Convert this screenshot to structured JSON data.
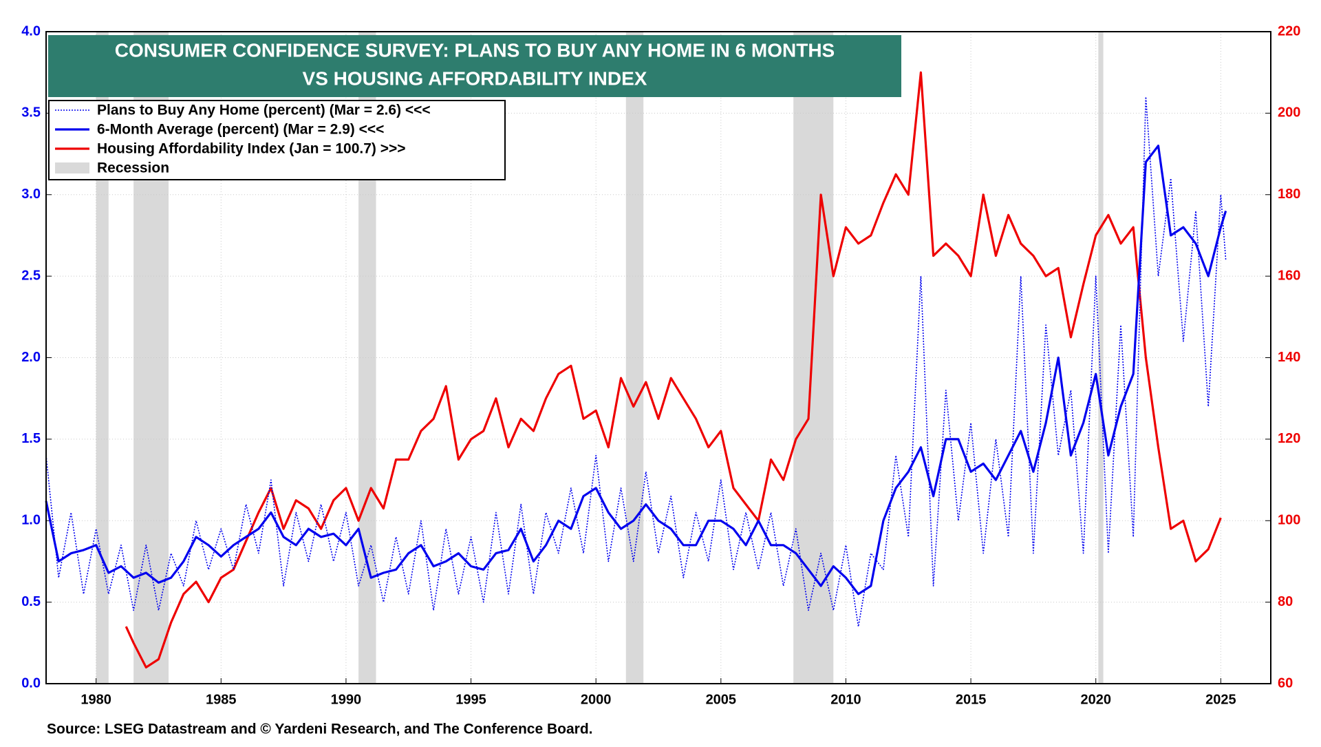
{
  "chart_data": {
    "type": "line",
    "title": [
      "CONSUMER CONFIDENCE SURVEY: PLANS TO BUY ANY HOME IN 6 MONTHS",
      "VS HOUSING AFFORDABILITY INDEX"
    ],
    "source": "Source: LSEG Datastream and © Yardeni Research, and The Conference Board.",
    "xlim": [
      1978,
      2027
    ],
    "xticks": [
      1980,
      1985,
      1990,
      1995,
      2000,
      2005,
      2010,
      2015,
      2020,
      2025
    ],
    "ylim": [
      0,
      4
    ],
    "yticks": [
      {
        "value": 0,
        "label": "0.0"
      },
      0.5,
      {
        "value": 1,
        "label": "1.0"
      },
      1.5,
      {
        "value": 2,
        "label": "2.0"
      },
      2.5,
      {
        "value": 3,
        "label": "3.0"
      },
      3.5,
      {
        "value": 4,
        "label": "4.0"
      }
    ],
    "y2lim": [
      60,
      220
    ],
    "y2ticks": [
      60,
      80,
      100,
      120,
      140,
      160,
      180,
      200,
      220
    ],
    "grid": true,
    "legend": "upper left",
    "series": [
      {
        "name": "Plans to Buy Any Home (percent) (Mar = 2.6) <<<",
        "color": "#0000ee",
        "style": "dotted",
        "x": [
          1978.0,
          1978.5,
          1979.0,
          1979.5,
          1980.0,
          1980.5,
          1981.0,
          1981.5,
          1982.0,
          1982.5,
          1983.0,
          1983.5,
          1984.0,
          1984.5,
          1985.0,
          1985.5,
          1986.0,
          1986.5,
          1987.0,
          1987.5,
          1988.0,
          1988.5,
          1989.0,
          1989.5,
          1990.0,
          1990.5,
          1991.0,
          1991.5,
          1992.0,
          1992.5,
          1993.0,
          1993.5,
          1994.0,
          1994.5,
          1995.0,
          1995.5,
          1996.0,
          1996.5,
          1997.0,
          1997.5,
          1998.0,
          1998.5,
          1999.0,
          1999.5,
          2000.0,
          2000.5,
          2001.0,
          2001.5,
          2002.0,
          2002.5,
          2003.0,
          2003.5,
          2004.0,
          2004.5,
          2005.0,
          2005.5,
          2006.0,
          2006.5,
          2007.0,
          2007.5,
          2008.0,
          2008.5,
          2009.0,
          2009.5,
          2010.0,
          2010.5,
          2011.0,
          2011.5,
          2012.0,
          2012.5,
          2013.0,
          2013.5,
          2014.0,
          2014.5,
          2015.0,
          2015.5,
          2016.0,
          2016.5,
          2017.0,
          2017.5,
          2018.0,
          2018.5,
          2019.0,
          2019.5,
          2020.0,
          2020.5,
          2021.0,
          2021.5,
          2022.0,
          2022.5,
          2023.0,
          2023.5,
          2024.0,
          2024.5,
          2025.0,
          2025.2
        ],
        "values": [
          1.4,
          0.65,
          1.05,
          0.55,
          0.95,
          0.55,
          0.85,
          0.45,
          0.85,
          0.45,
          0.8,
          0.6,
          1.0,
          0.7,
          0.95,
          0.7,
          1.1,
          0.8,
          1.25,
          0.6,
          1.05,
          0.75,
          1.1,
          0.75,
          1.05,
          0.6,
          0.85,
          0.5,
          0.9,
          0.55,
          1.0,
          0.45,
          0.95,
          0.55,
          0.9,
          0.5,
          1.05,
          0.55,
          1.1,
          0.55,
          1.05,
          0.8,
          1.2,
          0.8,
          1.4,
          0.75,
          1.2,
          0.75,
          1.3,
          0.8,
          1.15,
          0.65,
          1.05,
          0.75,
          1.25,
          0.7,
          1.05,
          0.7,
          1.05,
          0.6,
          0.95,
          0.45,
          0.8,
          0.45,
          0.85,
          0.35,
          0.8,
          0.7,
          1.4,
          0.9,
          2.5,
          0.6,
          1.8,
          1.0,
          1.6,
          0.8,
          1.5,
          0.9,
          2.5,
          0.8,
          2.2,
          1.4,
          1.8,
          0.8,
          2.5,
          0.8,
          2.2,
          0.9,
          3.6,
          2.5,
          3.1,
          2.1,
          2.9,
          1.7,
          3.0,
          2.6
        ]
      },
      {
        "name": "6-Month Average (percent) (Mar = 2.9) <<<",
        "color": "#0000ee",
        "style": "solid",
        "x": [
          1978.0,
          1978.5,
          1979.0,
          1979.5,
          1980.0,
          1980.5,
          1981.0,
          1981.5,
          1982.0,
          1982.5,
          1983.0,
          1983.5,
          1984.0,
          1984.5,
          1985.0,
          1985.5,
          1986.0,
          1986.5,
          1987.0,
          1987.5,
          1988.0,
          1988.5,
          1989.0,
          1989.5,
          1990.0,
          1990.5,
          1991.0,
          1991.5,
          1992.0,
          1992.5,
          1993.0,
          1993.5,
          1994.0,
          1994.5,
          1995.0,
          1995.5,
          1996.0,
          1996.5,
          1997.0,
          1997.5,
          1998.0,
          1998.5,
          1999.0,
          1999.5,
          2000.0,
          2000.5,
          2001.0,
          2001.5,
          2002.0,
          2002.5,
          2003.0,
          2003.5,
          2004.0,
          2004.5,
          2005.0,
          2005.5,
          2006.0,
          2006.5,
          2007.0,
          2007.5,
          2008.0,
          2008.5,
          2009.0,
          2009.5,
          2010.0,
          2010.5,
          2011.0,
          2011.5,
          2012.0,
          2012.5,
          2013.0,
          2013.5,
          2014.0,
          2014.5,
          2015.0,
          2015.5,
          2016.0,
          2016.5,
          2017.0,
          2017.5,
          2018.0,
          2018.5,
          2019.0,
          2019.5,
          2020.0,
          2020.5,
          2021.0,
          2021.5,
          2022.0,
          2022.5,
          2023.0,
          2023.5,
          2024.0,
          2024.5,
          2025.0,
          2025.2
        ],
        "values": [
          1.12,
          0.75,
          0.8,
          0.82,
          0.85,
          0.68,
          0.72,
          0.65,
          0.68,
          0.62,
          0.65,
          0.75,
          0.9,
          0.85,
          0.78,
          0.85,
          0.9,
          0.95,
          1.05,
          0.9,
          0.85,
          0.95,
          0.9,
          0.92,
          0.85,
          0.95,
          0.65,
          0.68,
          0.7,
          0.8,
          0.85,
          0.72,
          0.75,
          0.8,
          0.72,
          0.7,
          0.8,
          0.82,
          0.95,
          0.75,
          0.85,
          1.0,
          0.95,
          1.15,
          1.2,
          1.05,
          0.95,
          1.0,
          1.1,
          1.0,
          0.95,
          0.85,
          0.85,
          1.0,
          1.0,
          0.95,
          0.85,
          1.0,
          0.85,
          0.85,
          0.8,
          0.7,
          0.6,
          0.72,
          0.65,
          0.55,
          0.6,
          1.0,
          1.2,
          1.3,
          1.45,
          1.15,
          1.5,
          1.5,
          1.3,
          1.35,
          1.25,
          1.4,
          1.55,
          1.3,
          1.6,
          2.0,
          1.4,
          1.6,
          1.9,
          1.4,
          1.7,
          1.9,
          3.2,
          3.3,
          2.75,
          2.8,
          2.7,
          2.5,
          2.8,
          2.9
        ]
      },
      {
        "name": "Housing Affordability Index (Jan = 100.7) >>>",
        "color": "#ee0000",
        "style": "solid",
        "axis": "y2",
        "x": [
          1981.2,
          1981.5,
          1982.0,
          1982.5,
          1983.0,
          1983.5,
          1984.0,
          1984.5,
          1985.0,
          1985.5,
          1986.0,
          1986.5,
          1987.0,
          1987.5,
          1988.0,
          1988.5,
          1989.0,
          1989.5,
          1990.0,
          1990.5,
          1991.0,
          1991.5,
          1992.0,
          1992.5,
          1993.0,
          1993.5,
          1994.0,
          1994.5,
          1995.0,
          1995.5,
          1996.0,
          1996.5,
          1997.0,
          1997.5,
          1998.0,
          1998.5,
          1999.0,
          1999.5,
          2000.0,
          2000.5,
          2001.0,
          2001.5,
          2002.0,
          2002.5,
          2003.0,
          2003.5,
          2004.0,
          2004.5,
          2005.0,
          2005.5,
          2006.0,
          2006.5,
          2007.0,
          2007.5,
          2008.0,
          2008.5,
          2009.0,
          2009.5,
          2010.0,
          2010.5,
          2011.0,
          2011.5,
          2012.0,
          2012.5,
          2013.0,
          2013.5,
          2014.0,
          2014.5,
          2015.0,
          2015.5,
          2016.0,
          2016.5,
          2017.0,
          2017.5,
          2018.0,
          2018.5,
          2019.0,
          2019.5,
          2020.0,
          2020.5,
          2021.0,
          2021.5,
          2022.0,
          2022.5,
          2023.0,
          2023.5,
          2024.0,
          2024.5,
          2025.0
        ],
        "values": [
          74,
          70,
          64,
          66,
          75,
          82,
          85,
          80,
          86,
          88,
          95,
          102,
          108,
          98,
          105,
          103,
          98,
          105,
          108,
          100,
          108,
          103,
          115,
          115,
          122,
          125,
          133,
          115,
          120,
          122,
          130,
          118,
          125,
          122,
          130,
          136,
          138,
          125,
          127,
          118,
          135,
          128,
          134,
          125,
          135,
          130,
          125,
          118,
          122,
          108,
          104,
          100,
          115,
          110,
          120,
          125,
          180,
          160,
          172,
          168,
          170,
          178,
          185,
          180,
          210,
          165,
          168,
          165,
          160,
          180,
          165,
          175,
          168,
          165,
          160,
          162,
          145,
          158,
          170,
          175,
          168,
          172,
          140,
          118,
          98,
          100,
          90,
          93,
          100.7
        ]
      },
      {
        "name": "Recession",
        "color": "#d9d9d9",
        "periods": [
          [
            1980.0,
            1980.5
          ],
          [
            1981.5,
            1982.9
          ],
          [
            1990.5,
            1991.2
          ],
          [
            2001.2,
            2001.9
          ],
          [
            2007.9,
            2009.5
          ],
          [
            2020.1,
            2020.3
          ]
        ]
      }
    ]
  }
}
